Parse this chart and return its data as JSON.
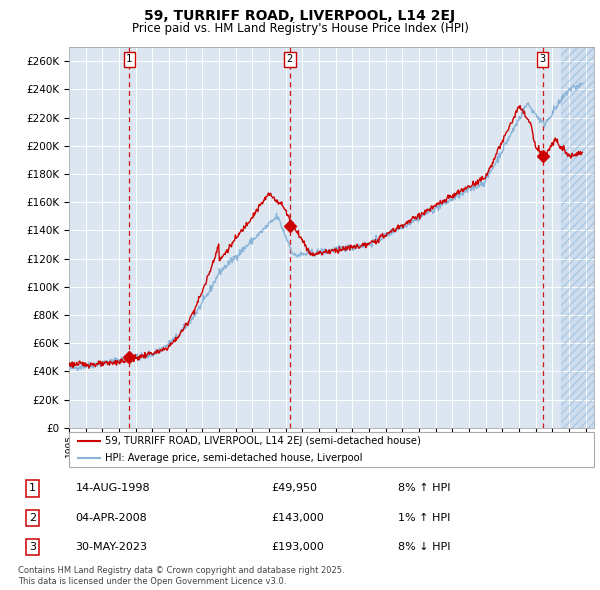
{
  "title": "59, TURRIFF ROAD, LIVERPOOL, L14 2EJ",
  "subtitle": "Price paid vs. HM Land Registry's House Price Index (HPI)",
  "ylim": [
    0,
    270000
  ],
  "yticks": [
    0,
    20000,
    40000,
    60000,
    80000,
    100000,
    120000,
    140000,
    160000,
    180000,
    200000,
    220000,
    240000,
    260000
  ],
  "ytick_labels": [
    "£0",
    "£20K",
    "£40K",
    "£60K",
    "£80K",
    "£100K",
    "£120K",
    "£140K",
    "£160K",
    "£180K",
    "£200K",
    "£220K",
    "£240K",
    "£260K"
  ],
  "background_color": "#dce6f0",
  "grid_color": "#ffffff",
  "hpi_color": "#8ab4d8",
  "price_color": "#cc0000",
  "legend_label_price": "59, TURRIFF ROAD, LIVERPOOL, L14 2EJ (semi-detached house)",
  "legend_label_hpi": "HPI: Average price, semi-detached house, Liverpool",
  "sale_dates": [
    "14-AUG-1998",
    "04-APR-2008",
    "30-MAY-2023"
  ],
  "sale_prices": [
    49950,
    143000,
    193000
  ],
  "sale_hpi_pct": [
    "8% ↑ HPI",
    "1% ↑ HPI",
    "8% ↓ HPI"
  ],
  "annotation_numbers": [
    "1",
    "2",
    "3"
  ],
  "sale_xvals": [
    1998.62,
    2008.25,
    2023.41
  ],
  "footnote1": "Contains HM Land Registry data © Crown copyright and database right 2025.",
  "footnote2": "This data is licensed under the Open Government Licence v3.0.",
  "xmin": 1995.0,
  "xmax": 2026.5,
  "hatch_start": 2024.5
}
